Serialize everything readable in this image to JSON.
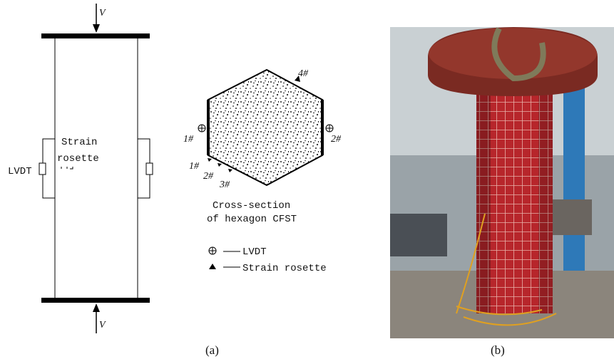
{
  "figure": {
    "panel_a": {
      "column": {
        "load_top": "V",
        "load_bottom": "V",
        "strain_rosette": [
          "Strain",
          "rosette"
        ],
        "lvdt": "LVDT"
      },
      "section": {
        "points": [
          "4#",
          "1#",
          "2#",
          "1#",
          "2#",
          "3#"
        ],
        "caption": [
          "Cross-section",
          "of hexagon CFST"
        ]
      },
      "legend": {
        "lvdt": "LVDT",
        "strain_rosette": "Strain rosette"
      },
      "label": "(a)"
    },
    "panel_b": {
      "label": "(b)"
    }
  }
}
